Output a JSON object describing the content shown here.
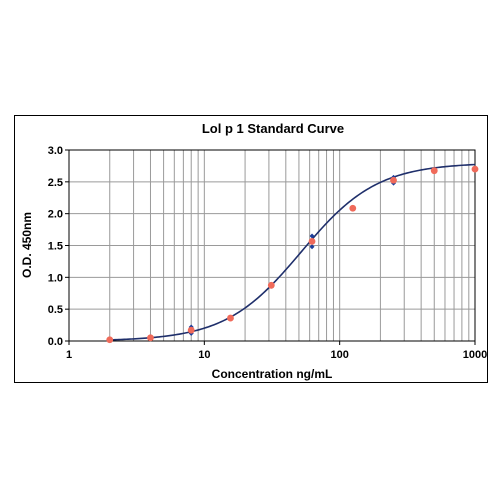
{
  "chart_data": {
    "type": "scatter",
    "title": "Lol p 1 Standard Curve",
    "xlabel": "Concentration ng/mL",
    "ylabel": "O.D. 450nm",
    "x_scale": "log",
    "xlim": [
      1,
      1000
    ],
    "ylim": [
      0,
      3.0
    ],
    "x_ticks": [
      1,
      10,
      100,
      1000
    ],
    "x_tick_labels": [
      "1",
      "10",
      "100",
      "1000"
    ],
    "y_ticks": [
      0,
      0.5,
      1.0,
      1.5,
      2.0,
      2.5,
      3.0
    ],
    "y_tick_labels": [
      "0.0",
      "0.5",
      "1.0",
      "1.5",
      "2.0",
      "2.5",
      "3.0"
    ],
    "grid": true,
    "legend": "none",
    "colors": {
      "curve": "#1f2f6b",
      "replicate_points": "#1c3d9a",
      "mean_points": "#f06a5a"
    },
    "series": [
      {
        "kind": "replicates",
        "x": [
          2,
          2,
          4,
          4,
          8,
          8,
          15.6,
          15.6,
          31.25,
          31.25,
          62.5,
          62.5,
          125,
          125,
          250,
          250,
          500,
          500,
          1000,
          1000
        ],
        "y": [
          0.02,
          0.02,
          0.05,
          0.05,
          0.22,
          0.12,
          0.37,
          0.36,
          0.89,
          0.86,
          1.65,
          1.48,
          2.09,
          2.08,
          2.57,
          2.48,
          2.68,
          2.67,
          2.71,
          2.69
        ]
      },
      {
        "kind": "mean",
        "x": [
          2,
          4,
          8,
          15.6,
          31.25,
          62.5,
          125,
          250,
          500,
          1000
        ],
        "y": [
          0.02,
          0.05,
          0.17,
          0.36,
          0.875,
          1.565,
          2.085,
          2.525,
          2.675,
          2.7
        ]
      },
      {
        "kind": "fitted-curve",
        "model": "4PL",
        "params": {
          "bottom": 0.0,
          "top": 2.8,
          "ec50": 52,
          "hill": 1.55
        }
      }
    ]
  }
}
